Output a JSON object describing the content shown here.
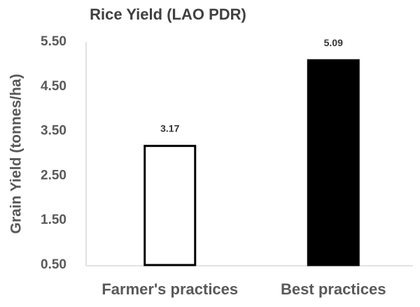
{
  "chart_data": {
    "type": "bar",
    "title": "Rice Yield (LAO PDR)",
    "ylabel": "Grain Yield (tonnes/ha)",
    "categories": [
      "Farmer's practices",
      "Best practices"
    ],
    "values": [
      3.17,
      5.09
    ],
    "colors": [
      "#ffffff",
      "#000000"
    ],
    "edgecolor": "#000000",
    "ylim": [
      0.5,
      5.5
    ],
    "yticks": [
      {
        "value": 0.5,
        "label": "0.50"
      },
      {
        "value": 1.5,
        "label": "1.50"
      },
      {
        "value": 2.5,
        "label": "2.50"
      },
      {
        "value": 3.5,
        "label": "3.50"
      },
      {
        "value": 4.5,
        "label": "4.50"
      },
      {
        "value": 5.5,
        "label": "5.50"
      }
    ],
    "grid": false
  }
}
